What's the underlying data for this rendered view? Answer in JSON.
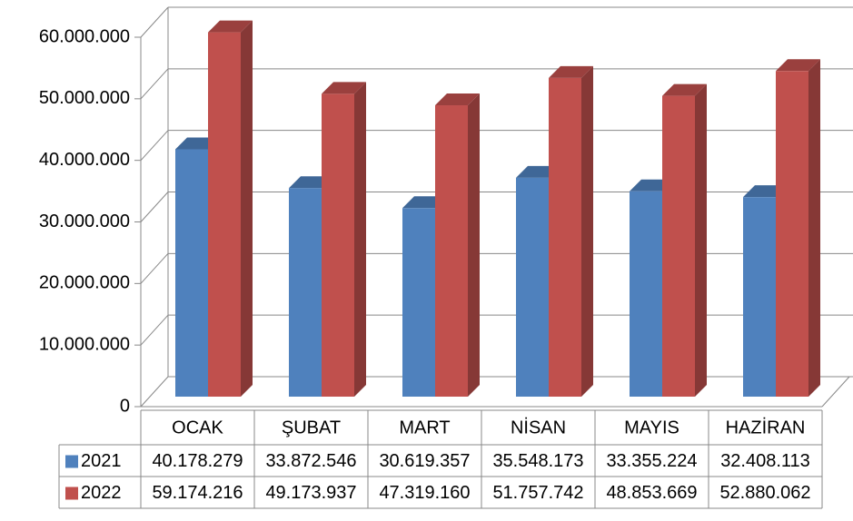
{
  "chart_data": {
    "type": "bar3d",
    "categories": [
      "OCAK",
      "ŞUBAT",
      "MART",
      "NİSAN",
      "MAYIS",
      "HAZİRAN"
    ],
    "series": [
      {
        "name": "2021",
        "color": "#4f81bd",
        "values": [
          40178279,
          33872546,
          30619357,
          35548173,
          33355224,
          32408113
        ],
        "value_labels": [
          "40.178.279",
          "33.872.546",
          "30.619.357",
          "35.548.173",
          "33.355.224",
          "32.408.113"
        ]
      },
      {
        "name": "2022",
        "color": "#c0504d",
        "values": [
          59174216,
          49173937,
          47319160,
          51757742,
          48853669,
          52880062
        ],
        "value_labels": [
          "59.174.216",
          "49.173.937",
          "47.319.160",
          "51.757.742",
          "48.853.669",
          "52.880.062"
        ]
      }
    ],
    "ylim": [
      0,
      60000000
    ],
    "yticks": [
      0,
      {
        "value": 10000000,
        "label": "10.000.000"
      },
      {
        "value": 20000000,
        "label": "20.000.000"
      },
      {
        "value": 30000000,
        "label": "30.000.000"
      },
      {
        "value": 40000000,
        "label": "40.000.000"
      },
      {
        "value": 50000000,
        "label": "50.000.000"
      },
      {
        "value": 60000000,
        "label": "60.000.000"
      }
    ],
    "grid": true
  }
}
